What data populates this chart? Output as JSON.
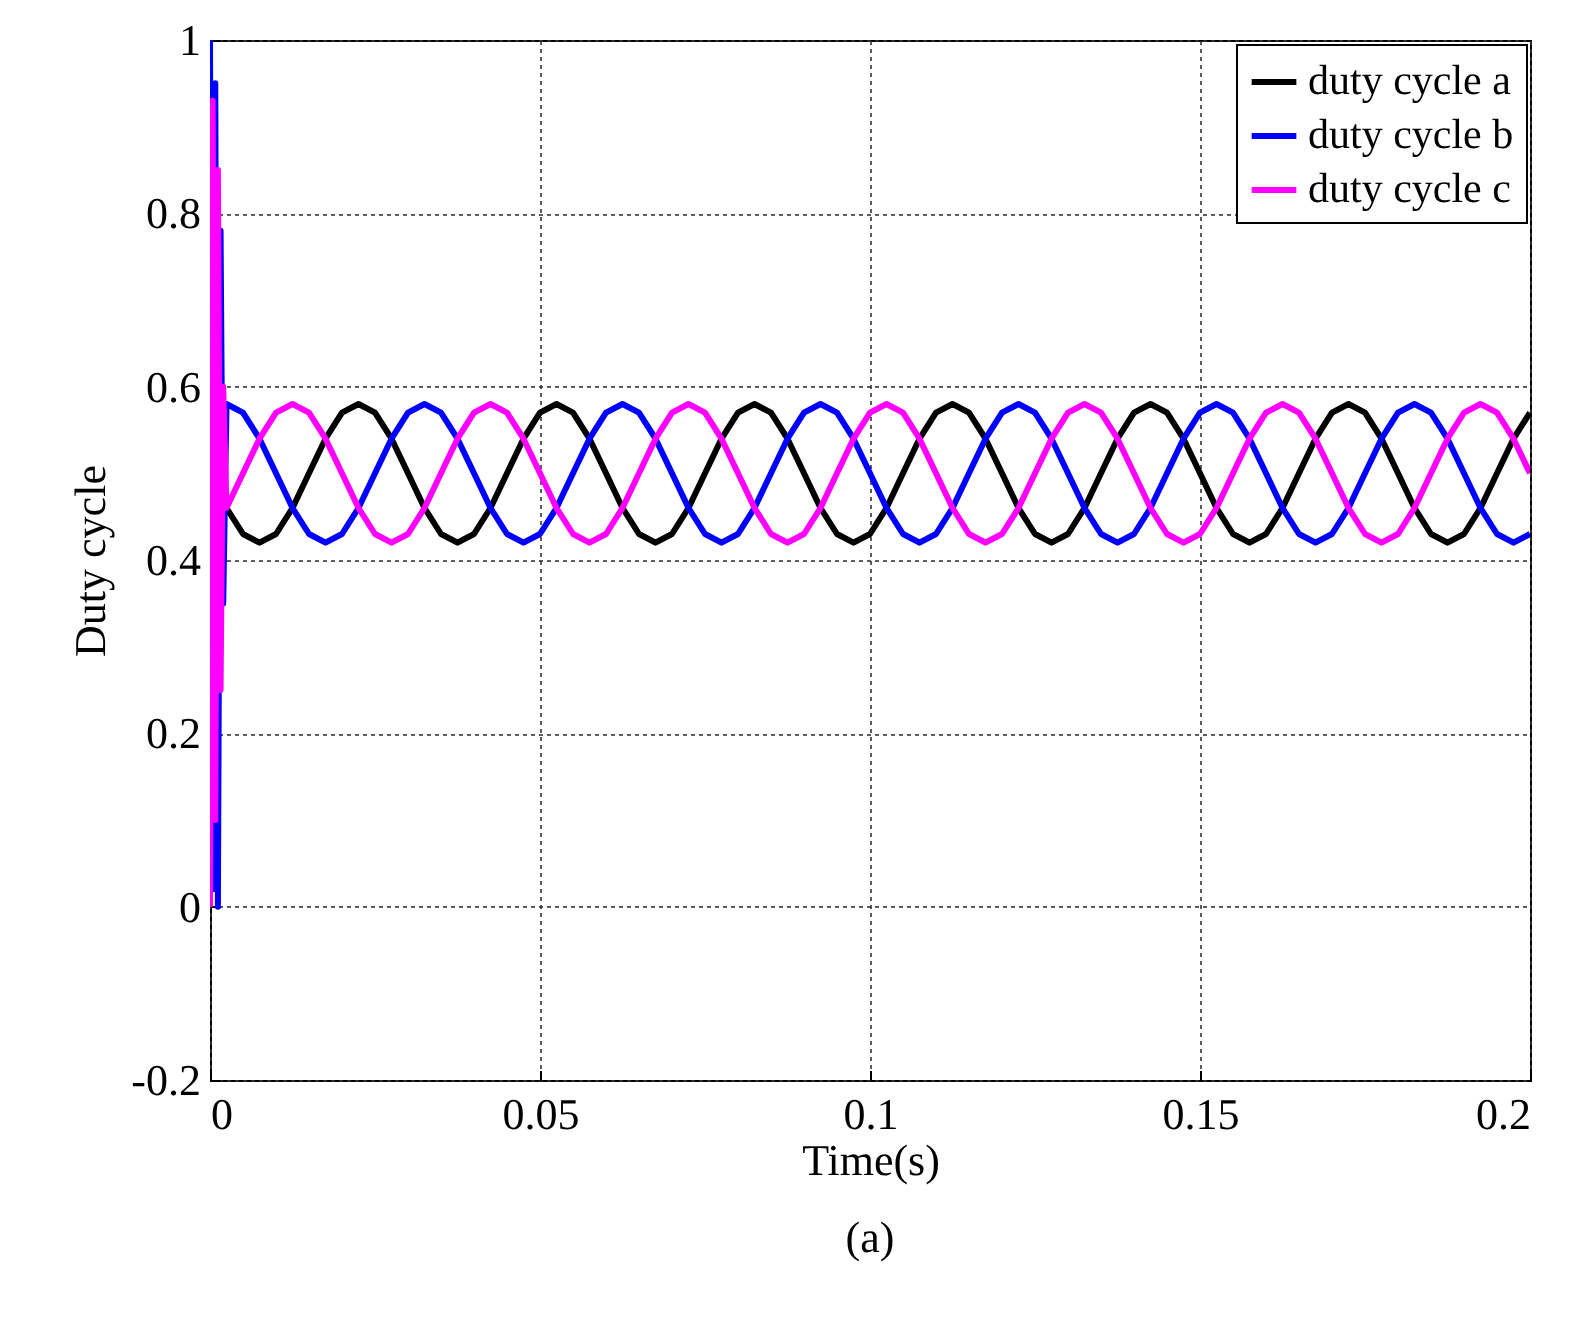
{
  "chart_data": {
    "type": "line",
    "xlabel": "Time(s)",
    "ylabel": "Duty cycle",
    "annotations": [
      "(a)"
    ],
    "xlim": [
      0,
      0.2
    ],
    "xticks": [
      0,
      0.05,
      0.1,
      0.15,
      0.2
    ],
    "ylim": [
      -0.2,
      1
    ],
    "yticks": [
      -0.2,
      0,
      0.2,
      0.4,
      0.6,
      0.8,
      1
    ],
    "grid": true,
    "legend": "top right",
    "x": [
      0,
      0.0004,
      0.0008,
      0.0012,
      0.0016,
      0.002,
      0.0025,
      0.005,
      0.0075,
      0.01,
      0.0125,
      0.015,
      0.0175,
      0.02,
      0.0225,
      0.025,
      0.0275,
      0.03,
      0.0325,
      0.035,
      0.0375,
      0.04,
      0.0425,
      0.045,
      0.0475,
      0.05,
      0.0525,
      0.055,
      0.0575,
      0.06,
      0.0625,
      0.065,
      0.0675,
      0.07,
      0.0725,
      0.075,
      0.0775,
      0.08,
      0.0825,
      0.085,
      0.0875,
      0.09,
      0.0925,
      0.095,
      0.0975,
      0.1,
      0.1025,
      0.105,
      0.1075,
      0.11,
      0.1125,
      0.115,
      0.1175,
      0.12,
      0.1225,
      0.125,
      0.1275,
      0.13,
      0.1325,
      0.135,
      0.1375,
      0.14,
      0.1425,
      0.145,
      0.1475,
      0.15,
      0.1525,
      0.155,
      0.1575,
      0.16,
      0.1625,
      0.165,
      0.1675,
      0.17,
      0.1725,
      0.175,
      0.1775,
      0.18,
      0.1825,
      0.185,
      0.1875,
      0.19,
      0.1925,
      0.195,
      0.1975,
      0.2
    ],
    "series": [
      {
        "name": "duty cycle a",
        "color": "#000000",
        "values": [
          null,
          null,
          null,
          0.41,
          0.46,
          null,
          0.46,
          0.43,
          0.42,
          0.43,
          0.46,
          0.5,
          0.54,
          0.57,
          0.58,
          0.57,
          0.54,
          0.5,
          0.46,
          0.43,
          0.42,
          0.43,
          0.46,
          0.5,
          0.54,
          0.57,
          0.58,
          0.57,
          0.54,
          0.5,
          0.46,
          0.43,
          0.42,
          0.43,
          0.46,
          0.5,
          0.54,
          0.57,
          0.58,
          0.57,
          0.54,
          0.5,
          0.46,
          0.43,
          0.42,
          0.43,
          0.46,
          0.5,
          0.54,
          0.57,
          0.58,
          0.57,
          0.54,
          0.5,
          0.46,
          0.43,
          0.42,
          0.43,
          0.46,
          0.5,
          0.54,
          0.57,
          0.58,
          0.57,
          0.54,
          0.5,
          0.46,
          0.43,
          0.42,
          0.43,
          0.46,
          0.5,
          0.54,
          0.57,
          0.58,
          0.57,
          0.54,
          0.5,
          0.46,
          0.43,
          0.42,
          0.43,
          0.46,
          0.5,
          0.54,
          0.57
        ]
      },
      {
        "name": "duty cycle b",
        "color": "#0000ff",
        "values": [
          1.0,
          0.02,
          0.95,
          0.0,
          0.78,
          0.35,
          0.58,
          0.57,
          0.54,
          0.5,
          0.46,
          0.43,
          0.42,
          0.43,
          0.46,
          0.5,
          0.54,
          0.57,
          0.58,
          0.57,
          0.54,
          0.5,
          0.46,
          0.43,
          0.42,
          0.43,
          0.46,
          0.5,
          0.54,
          0.57,
          0.58,
          0.57,
          0.54,
          0.5,
          0.46,
          0.43,
          0.42,
          0.43,
          0.46,
          0.5,
          0.54,
          0.57,
          0.58,
          0.57,
          0.54,
          0.5,
          0.46,
          0.43,
          0.42,
          0.43,
          0.46,
          0.5,
          0.54,
          0.57,
          0.58,
          0.57,
          0.54,
          0.5,
          0.46,
          0.43,
          0.42,
          0.43,
          0.46,
          0.5,
          0.54,
          0.57,
          0.58,
          0.57,
          0.54,
          0.5,
          0.46,
          0.43,
          0.42,
          0.43,
          0.46,
          0.5,
          0.54,
          0.57,
          0.58,
          0.57,
          0.54,
          0.5,
          0.46,
          0.43,
          0.42,
          0.43
        ]
      },
      {
        "name": "duty cycle c",
        "color": "#ff00ff",
        "values": [
          0.0,
          0.93,
          0.1,
          0.85,
          0.25,
          0.6,
          0.46,
          0.5,
          0.54,
          0.57,
          0.58,
          0.57,
          0.54,
          0.5,
          0.46,
          0.43,
          0.42,
          0.43,
          0.46,
          0.5,
          0.54,
          0.57,
          0.58,
          0.57,
          0.54,
          0.5,
          0.46,
          0.43,
          0.42,
          0.43,
          0.46,
          0.5,
          0.54,
          0.57,
          0.58,
          0.57,
          0.54,
          0.5,
          0.46,
          0.43,
          0.42,
          0.43,
          0.46,
          0.5,
          0.54,
          0.57,
          0.58,
          0.57,
          0.54,
          0.5,
          0.46,
          0.43,
          0.42,
          0.43,
          0.46,
          0.5,
          0.54,
          0.57,
          0.58,
          0.57,
          0.54,
          0.5,
          0.46,
          0.43,
          0.42,
          0.43,
          0.46,
          0.5,
          0.54,
          0.57,
          0.58,
          0.57,
          0.54,
          0.5,
          0.46,
          0.43,
          0.42,
          0.43,
          0.46,
          0.5,
          0.54,
          0.57,
          0.58,
          0.57,
          0.54,
          0.5
        ]
      }
    ]
  }
}
